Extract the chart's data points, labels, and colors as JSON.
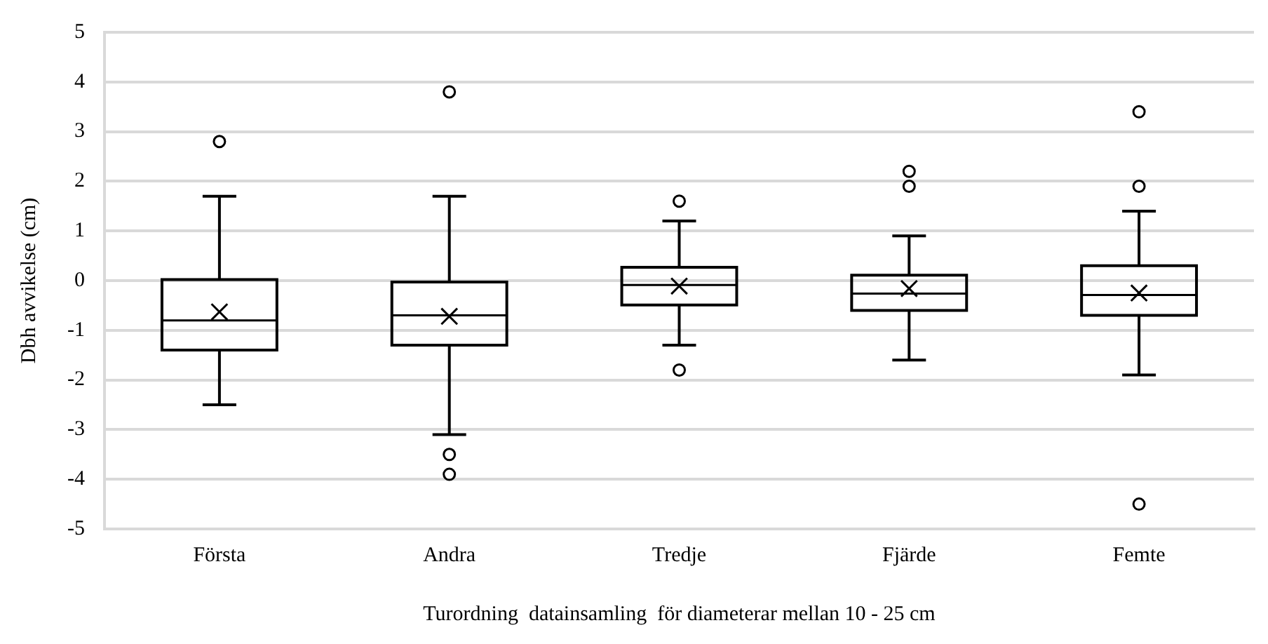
{
  "chart_data": {
    "type": "box",
    "xlabel": "Turordning  datainsamling  för diameterar mellan 10 - 25 cm",
    "ylabel": "Dbh avvikelse (cm)",
    "categories": [
      "Första",
      "Andra",
      "Tredje",
      "Fjärde",
      "Femte"
    ],
    "color": "#000000",
    "boxes": [
      {
        "low": -2.5,
        "q1": -1.4,
        "median": -0.8,
        "q3": 0.02,
        "high": 1.7,
        "mean": -0.63,
        "outliers": [
          2.8
        ]
      },
      {
        "low": -3.1,
        "q1": -1.3,
        "median": -0.7,
        "q3": -0.03,
        "high": 1.7,
        "mean": -0.72,
        "outliers": [
          3.8,
          -3.5,
          -3.9
        ]
      },
      {
        "low": -1.3,
        "q1": -0.49,
        "median": -0.09,
        "q3": 0.27,
        "high": 1.2,
        "mean": -0.11,
        "outliers": [
          1.6,
          -1.8
        ]
      },
      {
        "low": -1.6,
        "q1": -0.6,
        "median": -0.26,
        "q3": 0.11,
        "high": 0.9,
        "mean": -0.16,
        "outliers": [
          2.2,
          1.9
        ]
      },
      {
        "low": -1.9,
        "q1": -0.7,
        "median": -0.29,
        "q3": 0.3,
        "high": 1.4,
        "mean": -0.25,
        "outliers": [
          3.4,
          1.9,
          -4.5
        ]
      }
    ],
    "ylim": [
      -5,
      5
    ],
    "yticks": [
      -5,
      -4,
      -3,
      -2,
      -1,
      0,
      1,
      2,
      3,
      4,
      5
    ],
    "grid": "y",
    "legend": false
  }
}
